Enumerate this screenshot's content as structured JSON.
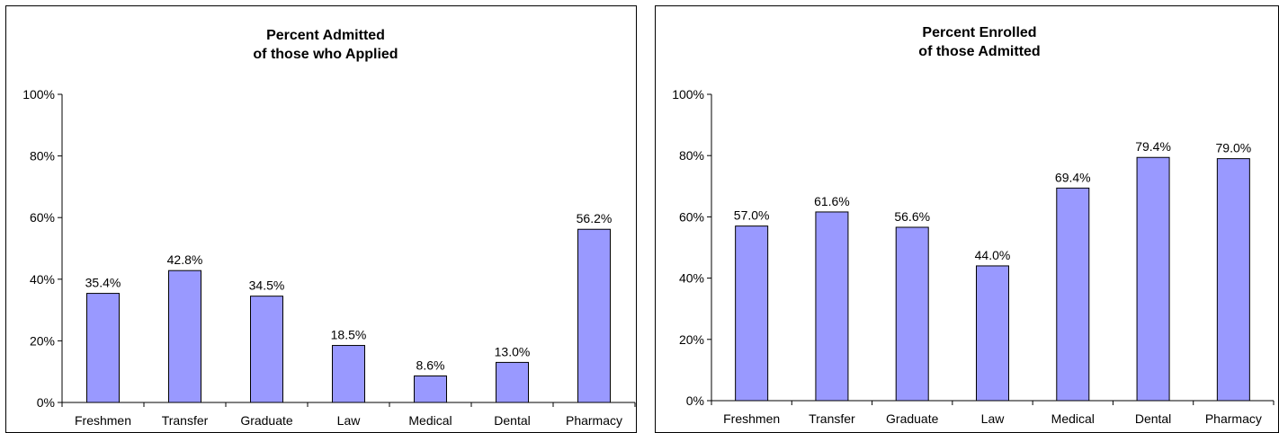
{
  "chart_data": [
    {
      "type": "bar",
      "title": [
        "Percent Admitted",
        "of those who Applied"
      ],
      "categories": [
        "Freshmen",
        "Transfer",
        "Graduate",
        "Law",
        "Medical",
        "Dental",
        "Pharmacy"
      ],
      "values": [
        35.4,
        42.8,
        34.5,
        18.5,
        8.6,
        13.0,
        56.2
      ],
      "value_labels": [
        "35.4%",
        "42.8%",
        "34.5%",
        "18.5%",
        "8.6%",
        "13.0%",
        "56.2%"
      ],
      "ylim": [
        0,
        100
      ],
      "yticks": [
        0,
        20,
        40,
        60,
        80,
        100
      ],
      "ytick_labels": [
        "0%",
        "20%",
        "40%",
        "60%",
        "80%",
        "100%"
      ],
      "grid": false,
      "legend": "none",
      "bar_color": "#9999ff"
    },
    {
      "type": "bar",
      "title": [
        "Percent Enrolled",
        "of those Admitted"
      ],
      "categories": [
        "Freshmen",
        "Transfer",
        "Graduate",
        "Law",
        "Medical",
        "Dental",
        "Pharmacy"
      ],
      "values": [
        57.0,
        61.6,
        56.6,
        44.0,
        69.4,
        79.4,
        79.0
      ],
      "value_labels": [
        "57.0%",
        "61.6%",
        "56.6%",
        "44.0%",
        "69.4%",
        "79.4%",
        "79.0%"
      ],
      "ylim": [
        0,
        100
      ],
      "yticks": [
        0,
        20,
        40,
        60,
        80,
        100
      ],
      "ytick_labels": [
        "0%",
        "20%",
        "40%",
        "60%",
        "80%",
        "100%"
      ],
      "grid": false,
      "legend": "none",
      "bar_color": "#9999ff"
    }
  ]
}
